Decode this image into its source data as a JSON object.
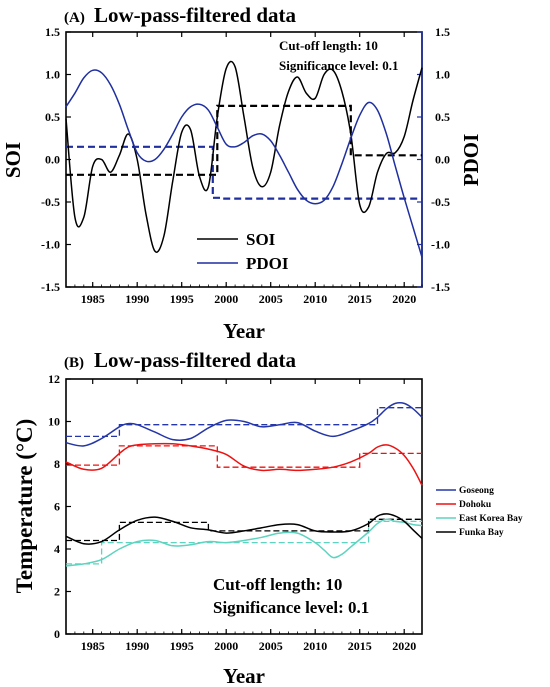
{
  "colors": {
    "soi": "#000000",
    "pdoi": "#1f2fa0",
    "goseong": "#2436a8",
    "dohoku": "#ee1111",
    "east_korea_bay": "#5ed3bf",
    "funka_bay": "#000000"
  },
  "chart_data": [
    {
      "type": "line",
      "panel_label": "(A)",
      "title": "Low-pass-filtered data",
      "xlabel": "Year",
      "ylabel_left": "SOI",
      "ylabel_right": "PDOI",
      "xlim": [
        1982,
        2022
      ],
      "ylim": [
        -1.5,
        1.5
      ],
      "xticks": [
        "1985",
        "1990",
        "1995",
        "2000",
        "2005",
        "2010",
        "2015",
        "2020"
      ],
      "yticks_left": [
        "1.5",
        "1.0",
        "0.5",
        "0.0",
        "-0.5",
        "-1.0",
        "-1.5"
      ],
      "yticks_right": [
        "1.5",
        "1.0",
        "0.5",
        "0.0",
        "-0.5",
        "-1.0",
        "-1.5"
      ],
      "annotations": [
        "Cut-off length: 10",
        "Significance level: 0.1"
      ],
      "legend": {
        "placement": "lower-center",
        "entries": [
          "SOI",
          "PDOI"
        ]
      },
      "series": [
        {
          "name": "SOI",
          "color_key": "soi",
          "x": [
            1982,
            1983,
            1984,
            1985,
            1986,
            1987,
            1988,
            1989,
            1990,
            1991,
            1992,
            1993,
            1994,
            1995,
            1996,
            1997,
            1998,
            1999,
            2000,
            2001,
            2002,
            2003,
            2004,
            2005,
            2006,
            2007,
            2008,
            2009,
            2010,
            2011,
            2012,
            2013,
            2014,
            2015,
            2016,
            2017,
            2018,
            2019,
            2020,
            2021,
            2022
          ],
          "y": [
            0.48,
            -0.68,
            -0.68,
            -0.08,
            0.0,
            -0.15,
            0.05,
            0.3,
            0.0,
            -0.65,
            -1.08,
            -0.9,
            -0.25,
            0.32,
            0.35,
            -0.2,
            -0.32,
            0.5,
            1.07,
            1.09,
            0.5,
            -0.1,
            -0.32,
            -0.15,
            0.4,
            0.8,
            0.97,
            0.78,
            0.72,
            1.0,
            1.05,
            0.8,
            0.3,
            -0.53,
            -0.56,
            -0.15,
            0.07,
            0.08,
            0.27,
            0.7,
            1.08
          ]
        },
        {
          "name": "PDOI",
          "color_key": "pdoi",
          "x": [
            1982,
            1983,
            1984,
            1985,
            1986,
            1987,
            1988,
            1989,
            1990,
            1991,
            1992,
            1993,
            1994,
            1995,
            1996,
            1997,
            1998,
            1999,
            2000,
            2001,
            2002,
            2003,
            2004,
            2005,
            2006,
            2007,
            2008,
            2009,
            2010,
            2011,
            2012,
            2013,
            2014,
            2015,
            2016,
            2017,
            2018,
            2019,
            2020,
            2021,
            2022
          ],
          "y": [
            0.62,
            0.78,
            0.96,
            1.05,
            1.02,
            0.88,
            0.65,
            0.35,
            0.08,
            -0.02,
            0.0,
            0.12,
            0.3,
            0.5,
            0.62,
            0.65,
            0.58,
            0.38,
            0.18,
            0.15,
            0.2,
            0.28,
            0.3,
            0.22,
            0.05,
            -0.15,
            -0.35,
            -0.48,
            -0.52,
            -0.48,
            -0.32,
            -0.05,
            0.25,
            0.52,
            0.67,
            0.58,
            0.3,
            -0.08,
            -0.45,
            -0.8,
            -1.15
          ]
        }
      ],
      "regime_means": [
        {
          "series": "SOI",
          "color_key": "soi",
          "segments": [
            [
              1982,
              1999,
              -0.18
            ],
            [
              1999,
              2014,
              0.63
            ],
            [
              2014,
              2022,
              0.05
            ]
          ]
        },
        {
          "series": "PDOI",
          "color_key": "pdoi",
          "segments": [
            [
              1982,
              1998.5,
              0.15
            ],
            [
              1998.5,
              1999.5,
              -0.45
            ],
            [
              1999.5,
              2022,
              -0.46
            ]
          ]
        }
      ]
    },
    {
      "type": "line",
      "panel_label": "(B)",
      "title": "Low-pass-filtered data",
      "xlabel": "Year",
      "ylabel": "Temperature (°C)",
      "xlim": [
        1982,
        2022
      ],
      "ylim": [
        0,
        12
      ],
      "xticks": [
        "1985",
        "1990",
        "1995",
        "2000",
        "2005",
        "2010",
        "2015",
        "2020"
      ],
      "yticks": [
        "0",
        "2",
        "4",
        "6",
        "8",
        "10",
        "12"
      ],
      "annotations": [
        "Cut-off length: 10",
        "Significance level: 0.1"
      ],
      "legend": {
        "placement": "right-outside",
        "entries": [
          "Goseong",
          "Dohoku",
          "East Korea Bay",
          "Funka Bay"
        ]
      },
      "series": [
        {
          "name": "Goseong",
          "color_key": "goseong",
          "x": [
            1982,
            1984,
            1986,
            1988,
            1989,
            1990,
            1992,
            1994,
            1996,
            1998,
            2000,
            2002,
            2004,
            2006,
            2008,
            2010,
            2012,
            2014,
            2016,
            2017,
            2018,
            2019,
            2020,
            2021,
            2022
          ],
          "y": [
            9.0,
            8.85,
            9.2,
            9.75,
            9.9,
            9.85,
            9.5,
            9.15,
            9.2,
            9.7,
            10.05,
            10.0,
            9.75,
            9.85,
            9.95,
            9.55,
            9.3,
            9.55,
            9.9,
            10.2,
            10.6,
            10.85,
            10.85,
            10.6,
            10.2
          ]
        },
        {
          "name": "Dohoku",
          "color_key": "dohoku",
          "x": [
            1982,
            1984,
            1986,
            1988,
            1989,
            1990,
            1992,
            1994,
            1996,
            1998,
            2000,
            2002,
            2004,
            2006,
            2008,
            2010,
            2012,
            2014,
            2016,
            2017,
            2018,
            2019,
            2020,
            2021,
            2022
          ],
          "y": [
            8.1,
            7.75,
            7.8,
            8.5,
            8.8,
            8.9,
            8.95,
            8.95,
            8.85,
            8.7,
            8.45,
            7.9,
            7.7,
            7.75,
            7.7,
            7.75,
            7.85,
            8.1,
            8.5,
            8.8,
            8.9,
            8.75,
            8.4,
            7.8,
            7.0
          ]
        },
        {
          "name": "East Korea Bay",
          "color_key": "east_korea_bay",
          "x": [
            1982,
            1984,
            1986,
            1988,
            1990,
            1992,
            1994,
            1996,
            1998,
            2000,
            2002,
            2004,
            2006,
            2008,
            2010,
            2011,
            2012,
            2013,
            2014,
            2016,
            2017,
            2018,
            2019,
            2020,
            2021,
            2022
          ],
          "y": [
            3.2,
            3.3,
            3.5,
            4.0,
            4.35,
            4.4,
            4.15,
            4.2,
            4.35,
            4.3,
            4.4,
            4.55,
            4.75,
            4.75,
            4.3,
            3.95,
            3.6,
            3.75,
            4.1,
            4.8,
            5.2,
            5.4,
            5.3,
            5.25,
            5.15,
            5.1
          ]
        },
        {
          "name": "Funka Bay",
          "color_key": "funka_bay",
          "x": [
            1982,
            1984,
            1986,
            1988,
            1990,
            1992,
            1994,
            1996,
            1998,
            2000,
            2002,
            2004,
            2006,
            2008,
            2010,
            2012,
            2014,
            2016,
            2017,
            2018,
            2019,
            2020,
            2021,
            2022
          ],
          "y": [
            4.6,
            4.25,
            4.35,
            4.9,
            5.35,
            5.5,
            5.3,
            5.0,
            4.9,
            4.75,
            4.85,
            5.0,
            5.15,
            5.15,
            4.85,
            4.8,
            4.85,
            5.2,
            5.55,
            5.65,
            5.55,
            5.3,
            4.9,
            4.5
          ]
        }
      ],
      "regime_means": [
        {
          "series": "Goseong",
          "color_key": "goseong",
          "segments": [
            [
              1982,
              1988,
              9.3
            ],
            [
              1988,
              2017,
              9.85
            ],
            [
              2017,
              2022,
              10.65
            ]
          ]
        },
        {
          "series": "Dohoku",
          "color_key": "dohoku",
          "segments": [
            [
              1982,
              1988,
              7.95
            ],
            [
              1988,
              1999,
              8.85
            ],
            [
              1999,
              2015,
              7.85
            ],
            [
              2015,
              2022,
              8.5
            ]
          ]
        },
        {
          "series": "East Korea Bay",
          "color_key": "east_korea_bay",
          "segments": [
            [
              1982,
              1986,
              3.3
            ],
            [
              1986,
              2016,
              4.3
            ],
            [
              2016,
              2022,
              5.3
            ]
          ]
        },
        {
          "series": "Funka Bay",
          "color_key": "funka_bay",
          "segments": [
            [
              1982,
              1988,
              4.4
            ],
            [
              1988,
              1998,
              5.25
            ],
            [
              1998,
              2016,
              4.85
            ],
            [
              2016,
              2022,
              5.4
            ]
          ]
        }
      ]
    }
  ]
}
